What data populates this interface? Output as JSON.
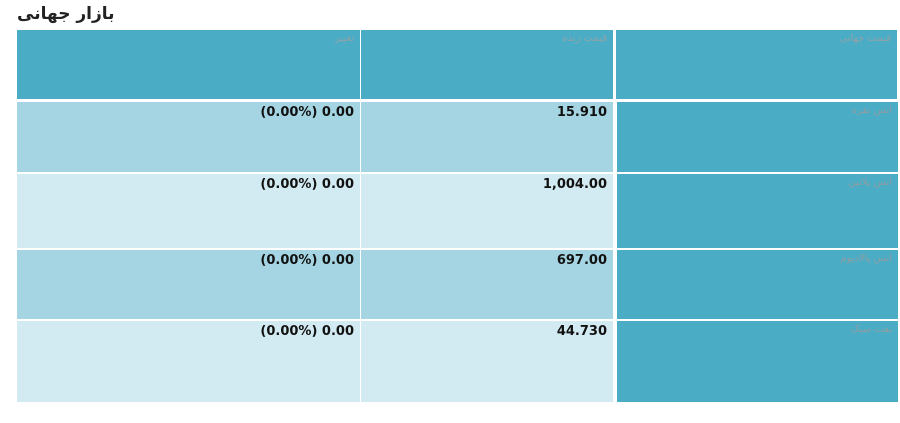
{
  "header": {
    "title": "بازار جهانی"
  },
  "table": {
    "headers": [
      "تغییر",
      "قیمت زنده",
      "قیمت جهانی"
    ],
    "rows": [
      [
        "(0.00%) 0.00",
        "15.910",
        "انس نقره"
      ],
      [
        "(0.00%) 0.00",
        "1,004.00",
        "انس پلاتین"
      ],
      [
        "(0.00%) 0.00",
        "697.00",
        "انس پالادیوم"
      ],
      [
        "(0.00%) 0.00",
        "44.730",
        "نفت سبک"
      ]
    ]
  }
}
